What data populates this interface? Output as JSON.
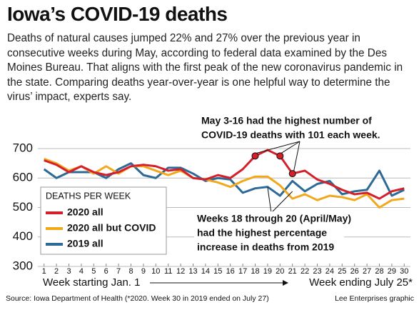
{
  "chart_data": {
    "type": "line",
    "title": "Iowa’s COVID-19 deaths",
    "subtitle": "Deaths of natural causes jumped 22% and 27% over the previous year in consecutive weeks during May, according to federal data examined by the Des Moines Bureau. That aligns with the first peak of the new coronavirus pandemic in the state. Comparing deaths year-over-year is one helpful way to determine the virus’ impact, experts say.",
    "categories": [
      "1",
      "2",
      "3",
      "4",
      "5",
      "6",
      "7",
      "8",
      "9",
      "10",
      "11",
      "12",
      "13",
      "14",
      "15",
      "16",
      "17",
      "18",
      "19",
      "20",
      "21",
      "22",
      "23",
      "24",
      "25",
      "26",
      "27",
      "28",
      "29",
      "30"
    ],
    "series": [
      {
        "name": "2020 all",
        "color": "#d4202a",
        "values": [
          660,
          645,
          620,
          640,
          620,
          610,
          620,
          640,
          645,
          640,
          625,
          630,
          600,
          595,
          610,
          600,
          630,
          675,
          695,
          675,
          615,
          625,
          595,
          580,
          560,
          545,
          550,
          530,
          555,
          565
        ]
      },
      {
        "name": "2020 all but COVID",
        "color": "#f2a81d",
        "values": [
          665,
          650,
          625,
          640,
          615,
          640,
          615,
          640,
          640,
          625,
          610,
          625,
          600,
          595,
          585,
          570,
          590,
          605,
          605,
          575,
          530,
          545,
          525,
          540,
          535,
          525,
          545,
          500,
          525,
          530
        ]
      },
      {
        "name": "2019 all",
        "color": "#2e6a96",
        "values": [
          630,
          600,
          620,
          620,
          620,
          600,
          630,
          650,
          610,
          600,
          635,
          635,
          615,
          590,
          600,
          595,
          550,
          565,
          570,
          540,
          590,
          555,
          580,
          590,
          545,
          555,
          560,
          625,
          540,
          560
        ]
      }
    ],
    "legend_title": "DEATHS PER WEEK",
    "ylim": [
      300,
      700
    ],
    "yticks": [
      300,
      400,
      500,
      600,
      700
    ],
    "grid": true,
    "x_label_start": "Week starting Jan. 1",
    "x_label_end": "Week ending July 25*",
    "annotations": [
      [
        "May 3-16 had the highest number of",
        "COVID-19 deaths with 101 each week."
      ],
      [
        "Weeks 18 through 20 (April/May)",
        "had the highest percentage",
        "increase in deaths from 2019"
      ]
    ],
    "source": "Source: Iowa Department of Health (*2020. Week 30 in 2019 ended on July 27)",
    "credit": "Lee Enterprises graphic"
  }
}
